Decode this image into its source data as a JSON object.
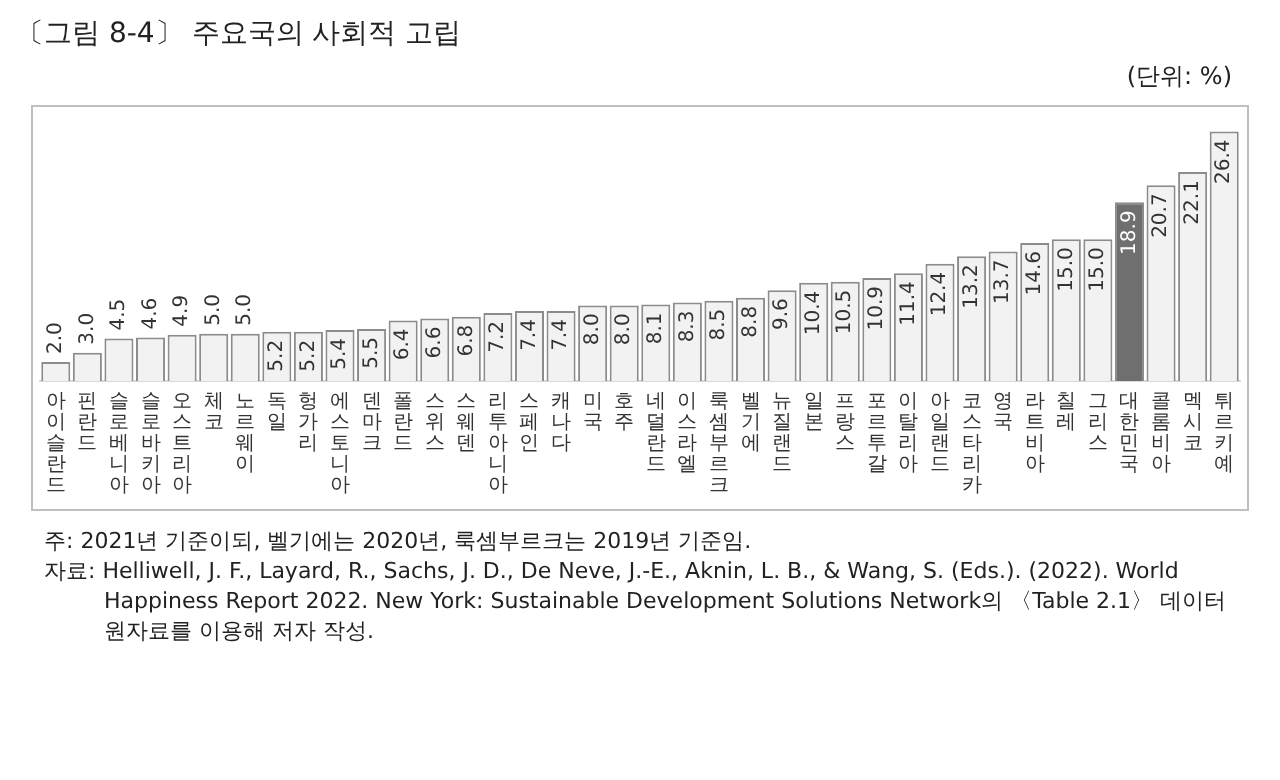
{
  "chart_data": {
    "type": "bar",
    "title": "〔그림 8-4〕 주요국의 사회적 고립",
    "subtitle": "(단위: %)",
    "categories": [
      "아이슬란드",
      "핀란드",
      "슬로베니아",
      "슬로바키아",
      "오스트리아",
      "체코",
      "노르웨이",
      "독일",
      "헝가리",
      "에스토니아",
      "덴마크",
      "폴란드",
      "스위스",
      "스웨덴",
      "리투아니아",
      "스페인",
      "캐나다",
      "미국",
      "호주",
      "네덜란드",
      "이스라엘",
      "룩셈부르크",
      "벨기에",
      "뉴질랜드",
      "일본",
      "프랑스",
      "포르투갈",
      "이탈리아",
      "아일랜드",
      "코스타리카",
      "영국",
      "라트비아",
      "칠레",
      "그리스",
      "대한민국",
      "콜롬비아",
      "멕시코",
      "튀르키예"
    ],
    "values": [
      2.0,
      3.0,
      4.5,
      4.6,
      4.9,
      5.0,
      5.0,
      5.2,
      5.2,
      5.4,
      5.5,
      6.4,
      6.6,
      6.8,
      7.2,
      7.4,
      7.4,
      8.0,
      8.0,
      8.1,
      8.3,
      8.5,
      8.8,
      9.6,
      10.4,
      10.5,
      10.9,
      11.4,
      12.4,
      13.2,
      13.7,
      14.6,
      15.0,
      15.0,
      18.9,
      20.7,
      22.1,
      26.4
    ],
    "colors": [
      "#f2f2f2",
      "#f2f2f2",
      "#f2f2f2",
      "#f2f2f2",
      "#f2f2f2",
      "#f2f2f2",
      "#f2f2f2",
      "#f2f2f2",
      "#f2f2f2",
      "#f2f2f2",
      "#f2f2f2",
      "#f2f2f2",
      "#f2f2f2",
      "#f2f2f2",
      "#f2f2f2",
      "#f2f2f2",
      "#f2f2f2",
      "#f2f2f2",
      "#f2f2f2",
      "#f2f2f2",
      "#f2f2f2",
      "#f2f2f2",
      "#f2f2f2",
      "#f2f2f2",
      "#f2f2f2",
      "#f2f2f2",
      "#f2f2f2",
      "#f2f2f2",
      "#f2f2f2",
      "#f2f2f2",
      "#f2f2f2",
      "#f2f2f2",
      "#f2f2f2",
      "#f2f2f2",
      "#6f6f6f",
      "#f2f2f2",
      "#f2f2f2",
      "#f2f2f2"
    ],
    "value_labels": [
      "2.0",
      "3.0",
      "4.5",
      "4.6",
      "4.9",
      "5.0",
      "5.0",
      "5.2",
      "5.2",
      "5.4",
      "5.5",
      "6.4",
      "6.6",
      "6.8",
      "7.2",
      "7.4",
      "7.4",
      "8.0",
      "8.0",
      "8.1",
      "8.3",
      "8.5",
      "8.8",
      "9.6",
      "10.4",
      "10.5",
      "10.9",
      "11.4",
      "12.4",
      "13.2",
      "13.7",
      "14.6",
      "15.0",
      "15.0",
      "18.9",
      "20.7",
      "22.1",
      "26.4"
    ],
    "grid": false,
    "legend": false,
    "annotations": [
      "주: 2021년 기준이되, 벨기에는 2020년, 룩셈부르크는 2019년 기준임.",
      "자료: Helliwell, J. F., Layard, R., Sachs, J. D., De Neve, J.-E., Aknin, L. B., & Wang, S. (Eds.). (2022). World Happiness Report 2022. New York: Sustainable Development Solutions Network의 〈Table 2.1〉 데이터 원자료를 이용해 저자 작성."
    ]
  }
}
